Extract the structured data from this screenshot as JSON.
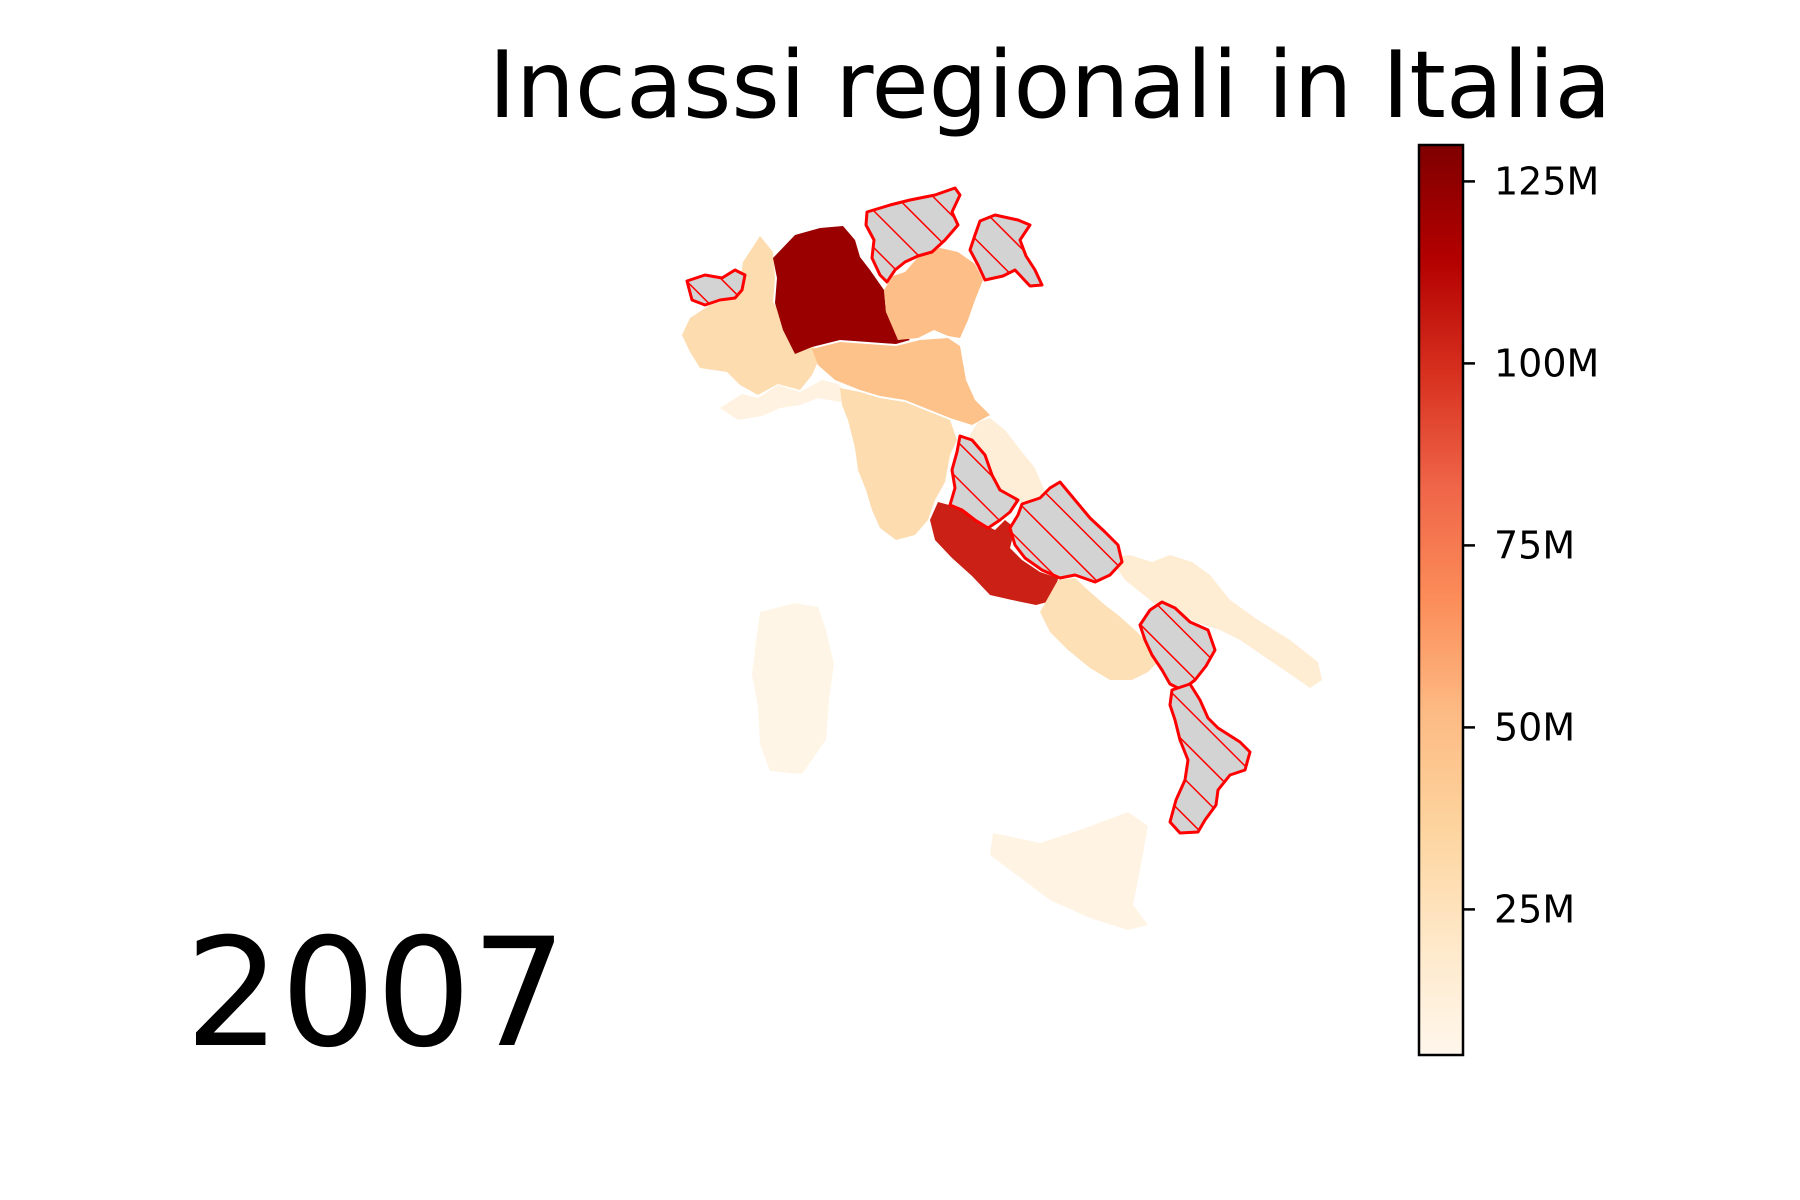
{
  "title": "Incassi regionali in Italia",
  "year": "2007",
  "colorbar": {
    "colormap": "OrRd",
    "range": [
      5,
      130
    ],
    "ticks": [
      {
        "value": 25,
        "label": "25M"
      },
      {
        "value": 50,
        "label": "50M"
      },
      {
        "value": 75,
        "label": "75M"
      },
      {
        "value": 100,
        "label": "100M"
      },
      {
        "value": 125,
        "label": "125M"
      }
    ],
    "stops": [
      "#fff7ec",
      "#fee8c8",
      "#fdd49e",
      "#fdbb84",
      "#fc8d59",
      "#ef6548",
      "#d7301f",
      "#b30000",
      "#7f0000"
    ]
  },
  "missing_style": {
    "fill": "#d3d3d3",
    "edge": "#ff0000",
    "hatch": "diagonal"
  },
  "regions": [
    {
      "name": "Lombardia",
      "value": 122
    },
    {
      "name": "Lazio",
      "value": 104
    },
    {
      "name": "Veneto",
      "value": 50
    },
    {
      "name": "Emilia-Romagna",
      "value": 48
    },
    {
      "name": "Piemonte",
      "value": 30
    },
    {
      "name": "Toscana",
      "value": 30
    },
    {
      "name": "Campania",
      "value": 27
    },
    {
      "name": "Puglia",
      "value": 16
    },
    {
      "name": "Marche",
      "value": 14
    },
    {
      "name": "Liguria",
      "value": 10
    },
    {
      "name": "Sicilia",
      "value": 9
    },
    {
      "name": "Sardegna",
      "value": 7
    },
    {
      "name": "Valle d'Aosta",
      "value": null
    },
    {
      "name": "Trentino-Alto Adige",
      "value": null
    },
    {
      "name": "Friuli-Venezia Giulia",
      "value": null
    },
    {
      "name": "Umbria",
      "value": null
    },
    {
      "name": "Abruzzo",
      "value": null
    },
    {
      "name": "Basilicata",
      "value": null
    },
    {
      "name": "Calabria",
      "value": null
    }
  ]
}
